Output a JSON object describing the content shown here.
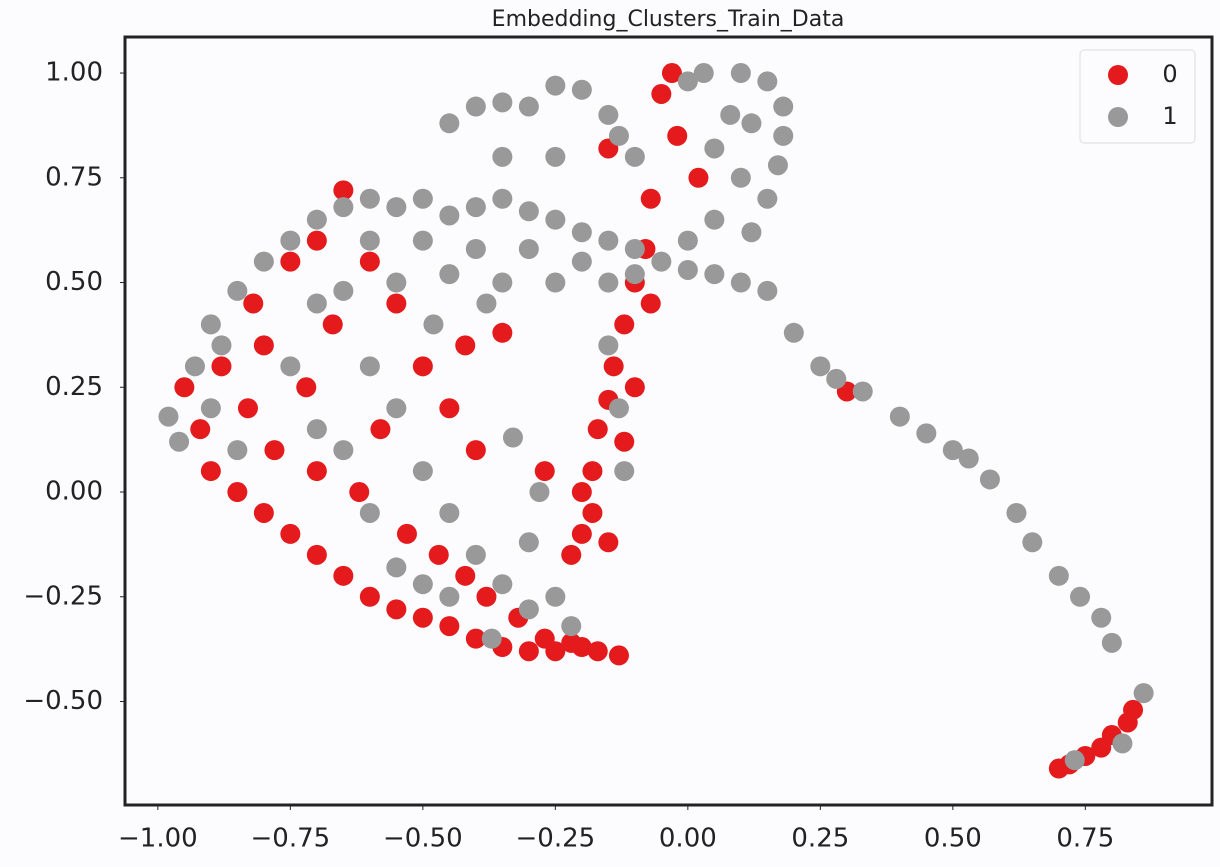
{
  "chart_data": {
    "type": "scatter",
    "title": "Embedding_Clusters_Train_Data",
    "xlim": [
      -1.062,
      0.989
    ],
    "ylim": [
      -0.747,
      1.086
    ],
    "xticks": [
      {
        "value": -1,
        "label": "−1.00"
      },
      {
        "value": -0.75,
        "label": "−0.75"
      },
      {
        "value": -0.5,
        "label": "−0.50"
      },
      {
        "value": -0.25,
        "label": "−0.25"
      },
      {
        "value": 0,
        "label": "0.00"
      },
      0.25,
      {
        "value": 0.5,
        "label": "0.50"
      },
      0.75
    ],
    "yticks": [
      {
        "value": -0.5,
        "label": "−0.50"
      },
      {
        "value": -0.25,
        "label": "−0.25"
      },
      {
        "value": 0,
        "label": "0.00"
      },
      0.25,
      {
        "value": 0.5,
        "label": "0.50"
      },
      0.75,
      {
        "value": 1,
        "label": "1.00"
      }
    ],
    "legend": "upper right",
    "series": [
      {
        "name": "0",
        "color": "#e41a1c",
        "x": [
          -0.95,
          -0.92,
          -0.9,
          -0.88,
          -0.85,
          -0.83,
          -0.8,
          -0.8,
          -0.78,
          -0.75,
          -0.72,
          -0.7,
          -0.7,
          -0.67,
          -0.65,
          -0.62,
          -0.6,
          -0.58,
          -0.55,
          -0.53,
          -0.5,
          -0.5,
          -0.47,
          -0.45,
          -0.42,
          -0.4,
          -0.38,
          -0.35,
          -0.32,
          -0.3,
          -0.27,
          -0.25,
          -0.22,
          -0.2,
          -0.17,
          -0.13,
          -0.55,
          -0.6,
          -0.65,
          -0.45,
          -0.4,
          -0.42,
          -0.35,
          -0.75,
          -0.82,
          -0.7,
          -0.2,
          -0.18,
          -0.18,
          -0.17,
          -0.15,
          -0.14,
          -0.12,
          -0.1,
          -0.08,
          -0.15,
          -0.2,
          -0.22,
          -0.27,
          -0.12,
          -0.1,
          -0.07,
          -0.05,
          -0.03,
          -0.02,
          -0.07,
          0.02,
          -0.15,
          0.3,
          0.7,
          0.72,
          0.75,
          0.78,
          0.8,
          0.83,
          0.84
        ],
        "y": [
          0.25,
          0.15,
          0.05,
          0.3,
          0.0,
          0.2,
          -0.05,
          0.35,
          0.1,
          -0.1,
          0.25,
          -0.15,
          0.05,
          0.4,
          -0.2,
          0.0,
          -0.25,
          0.15,
          -0.28,
          -0.1,
          -0.3,
          0.3,
          -0.15,
          -0.32,
          -0.2,
          -0.35,
          -0.25,
          -0.37,
          -0.3,
          -0.38,
          -0.35,
          -0.38,
          -0.36,
          -0.37,
          -0.38,
          -0.39,
          0.45,
          0.55,
          0.72,
          0.2,
          0.1,
          0.35,
          0.38,
          0.55,
          0.45,
          0.6,
          -0.1,
          -0.05,
          0.05,
          0.15,
          0.22,
          0.3,
          0.4,
          0.5,
          0.58,
          -0.12,
          0.0,
          -0.15,
          0.05,
          0.12,
          0.25,
          0.45,
          0.95,
          1.0,
          0.85,
          0.7,
          0.75,
          0.82,
          0.24,
          -0.66,
          -0.65,
          -0.63,
          -0.61,
          -0.58,
          -0.55,
          -0.52
        ]
      },
      {
        "name": "1",
        "color": "#999999",
        "x": [
          -0.9,
          -0.85,
          -0.8,
          -0.75,
          -0.7,
          -0.65,
          -0.6,
          -0.55,
          -0.5,
          -0.45,
          -0.4,
          -0.35,
          -0.3,
          -0.25,
          -0.2,
          -0.15,
          -0.1,
          -0.05,
          0.0,
          0.05,
          0.1,
          0.15,
          -0.6,
          -0.5,
          -0.4,
          -0.3,
          -0.2,
          -0.1,
          0.0,
          0.05,
          -0.35,
          -0.25,
          -0.15,
          -0.45,
          -0.55,
          -0.65,
          -0.7,
          0.1,
          0.15,
          0.18,
          0.18,
          0.17,
          0.15,
          0.12,
          0.08,
          0.05,
          0.1,
          0.0,
          0.03,
          0.12,
          -0.45,
          -0.4,
          -0.35,
          -0.3,
          -0.25,
          -0.2,
          -0.15,
          -0.13,
          -0.1,
          -0.35,
          -0.25,
          -0.98,
          -0.96,
          -0.93,
          -0.9,
          -0.88,
          -0.85,
          -0.75,
          -0.7,
          -0.6,
          -0.55,
          -0.5,
          -0.45,
          -0.4,
          -0.35,
          -0.3,
          -0.25,
          -0.3,
          -0.45,
          -0.55,
          -0.6,
          -0.65,
          -0.33,
          -0.28,
          -0.22,
          -0.37,
          -0.5,
          -0.15,
          -0.13,
          -0.12,
          -0.38,
          -0.48,
          0.2,
          0.25,
          0.28,
          0.33,
          0.4,
          0.45,
          0.5,
          0.53,
          0.57,
          0.62,
          0.65,
          0.7,
          0.74,
          0.78,
          0.8,
          0.86,
          0.82,
          0.73
        ],
        "y": [
          0.4,
          0.48,
          0.55,
          0.6,
          0.65,
          0.68,
          0.7,
          0.68,
          0.7,
          0.66,
          0.68,
          0.7,
          0.67,
          0.65,
          0.62,
          0.6,
          0.58,
          0.55,
          0.53,
          0.52,
          0.5,
          0.48,
          0.6,
          0.6,
          0.58,
          0.58,
          0.55,
          0.52,
          0.6,
          0.65,
          0.5,
          0.5,
          0.5,
          0.52,
          0.5,
          0.48,
          0.45,
          1.0,
          0.98,
          0.92,
          0.85,
          0.78,
          0.7,
          0.62,
          0.9,
          0.82,
          0.75,
          0.98,
          1.0,
          0.88,
          0.88,
          0.92,
          0.93,
          0.92,
          0.97,
          0.96,
          0.9,
          0.85,
          0.8,
          0.8,
          0.8,
          0.18,
          0.12,
          0.3,
          0.2,
          0.35,
          0.1,
          0.3,
          0.15,
          0.3,
          0.2,
          0.05,
          -0.05,
          -0.15,
          -0.22,
          -0.28,
          -0.25,
          -0.12,
          -0.25,
          -0.18,
          -0.05,
          0.1,
          0.13,
          0.0,
          -0.32,
          -0.35,
          -0.22,
          0.35,
          0.2,
          0.05,
          0.45,
          0.4,
          0.38,
          0.3,
          0.27,
          0.24,
          0.18,
          0.14,
          0.1,
          0.08,
          0.03,
          -0.05,
          -0.12,
          -0.2,
          -0.25,
          -0.3,
          -0.36,
          -0.48,
          -0.6,
          -0.64
        ]
      }
    ]
  }
}
